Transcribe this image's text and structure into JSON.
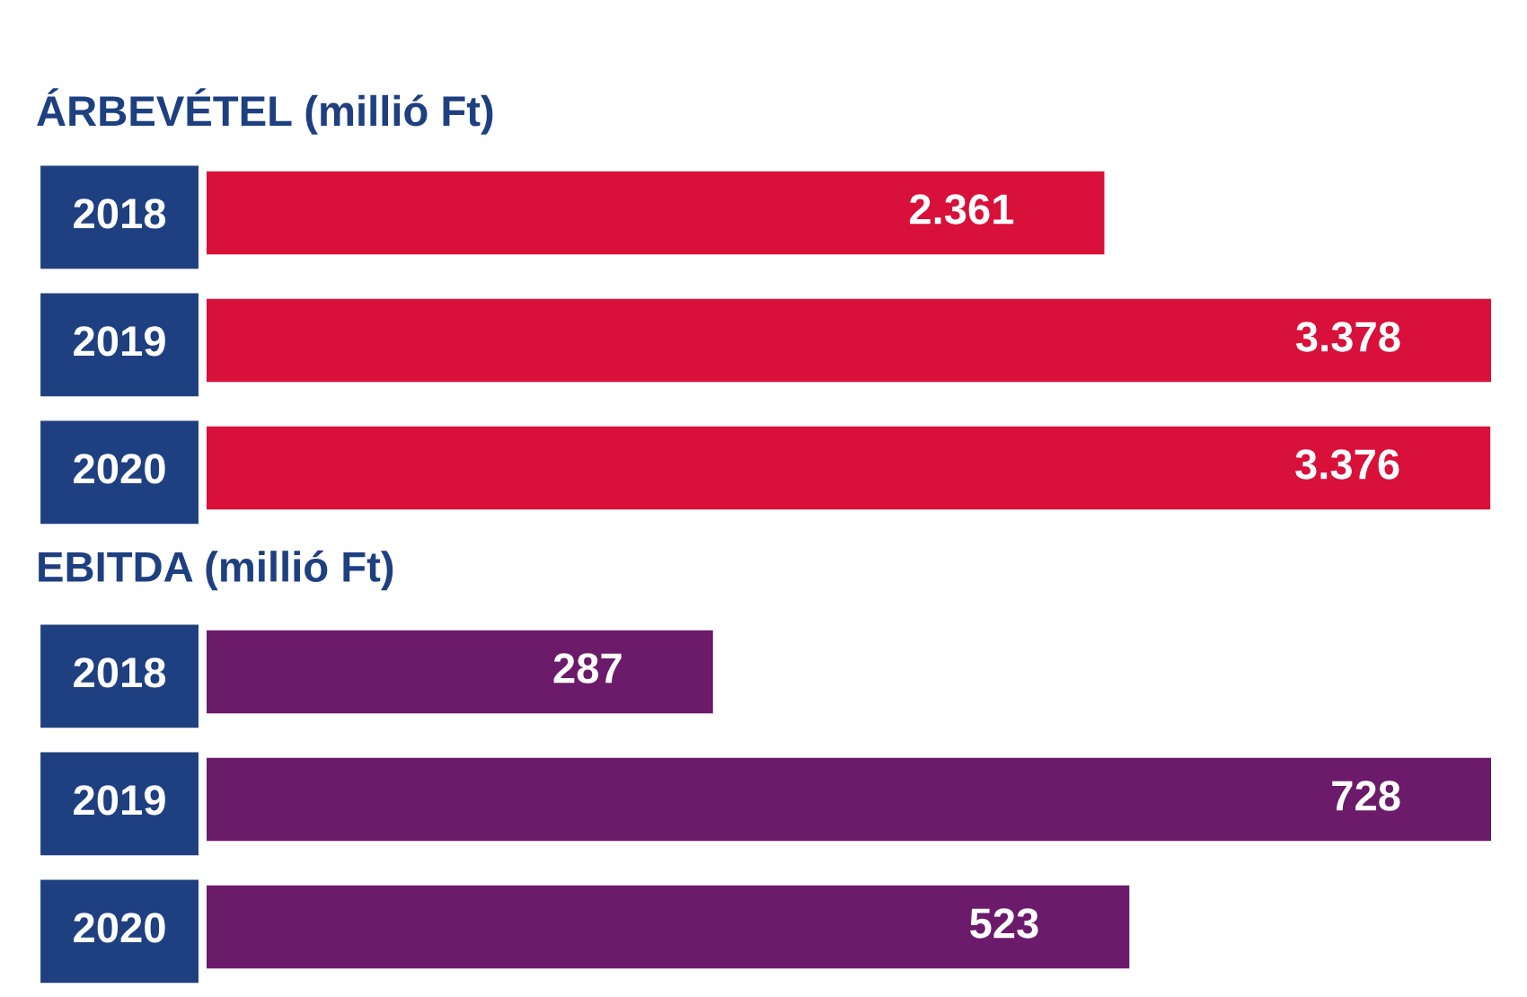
{
  "chart_data": [
    {
      "type": "bar",
      "orientation": "horizontal",
      "title": "ÁRBEVÉTEL (millió Ft)",
      "categories": [
        "2018",
        "2019",
        "2020"
      ],
      "values": [
        2361,
        3378,
        3376
      ],
      "value_labels": [
        "2.361",
        "3.378",
        "3.376"
      ],
      "color": "#d9103a",
      "tick_labels": "y",
      "grid": false,
      "legend": false
    },
    {
      "type": "bar",
      "orientation": "horizontal",
      "title": "EBITDA (millió Ft)",
      "categories": [
        "2018",
        "2019",
        "2020"
      ],
      "values": [
        287,
        728,
        523
      ],
      "value_labels": [
        "287",
        "728",
        "523"
      ],
      "color": "#6c1a6a",
      "tick_labels": "y",
      "grid": false,
      "legend": false
    }
  ]
}
